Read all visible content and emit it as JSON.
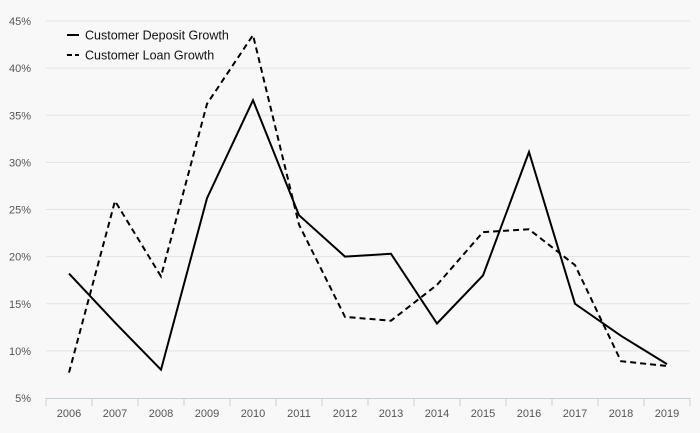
{
  "chart_data": {
    "type": "line",
    "x": [
      "2006",
      "2007",
      "2008",
      "2009",
      "2010",
      "2011",
      "2012",
      "2013",
      "2014",
      "2015",
      "2016",
      "2017",
      "2018",
      "2019"
    ],
    "ylim": [
      5,
      45
    ],
    "yticks": [
      5,
      10,
      15,
      20,
      25,
      30,
      35,
      40,
      45
    ],
    "ytick_labels": [
      "5%",
      "10%",
      "15%",
      "20%",
      "25%",
      "30%",
      "35%",
      "40%",
      "45%"
    ],
    "grid": true,
    "legend_position": "top-left",
    "series": [
      {
        "name": "Customer Deposit Growth",
        "style": "solid",
        "color": "#000000",
        "values": [
          18.2,
          13.0,
          8.0,
          26.2,
          36.6,
          24.4,
          20.0,
          20.3,
          12.9,
          18.0,
          31.1,
          15.0,
          11.6,
          8.6
        ]
      },
      {
        "name": "Customer Loan Growth",
        "style": "dashed",
        "color": "#000000",
        "values": [
          7.7,
          25.9,
          17.9,
          36.2,
          43.5,
          23.4,
          13.6,
          13.2,
          17.0,
          22.6,
          22.9,
          19.1,
          8.9,
          8.4
        ]
      }
    ]
  }
}
